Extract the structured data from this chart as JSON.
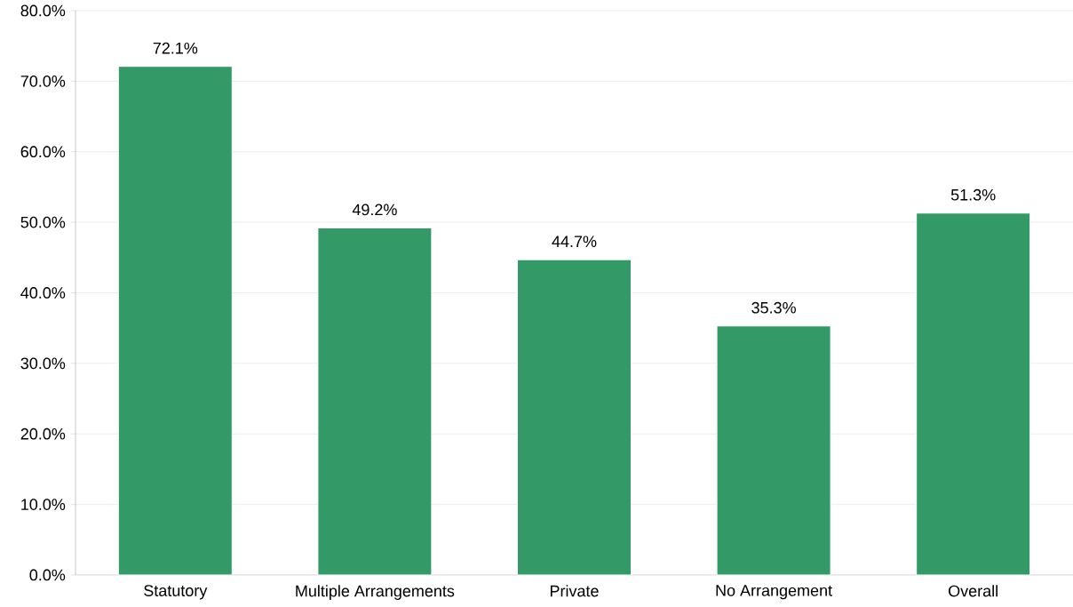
{
  "chart_data": {
    "type": "bar",
    "categories": [
      "Statutory",
      "Multiple Arrangements",
      "Private",
      "No Arrangement",
      "Overall"
    ],
    "values": [
      72.1,
      49.2,
      44.7,
      35.3,
      51.3
    ],
    "value_labels": [
      "72.1%",
      "49.2%",
      "44.7%",
      "35.3%",
      "51.3%"
    ],
    "color": "#339966",
    "ylim": [
      0,
      80
    ],
    "yticks": [
      {
        "value": 0,
        "label": "0.0%"
      },
      {
        "value": 10,
        "label": "10.0%"
      },
      {
        "value": 20,
        "label": "20.0%"
      },
      {
        "value": 30,
        "label": "30.0%"
      },
      {
        "value": 40,
        "label": "40.0%"
      },
      {
        "value": 50,
        "label": "50.0%"
      },
      {
        "value": 60,
        "label": "60.0%"
      },
      {
        "value": 70,
        "label": "70.0%"
      },
      {
        "value": 80,
        "label": "80.0%"
      }
    ],
    "grid": "y"
  }
}
